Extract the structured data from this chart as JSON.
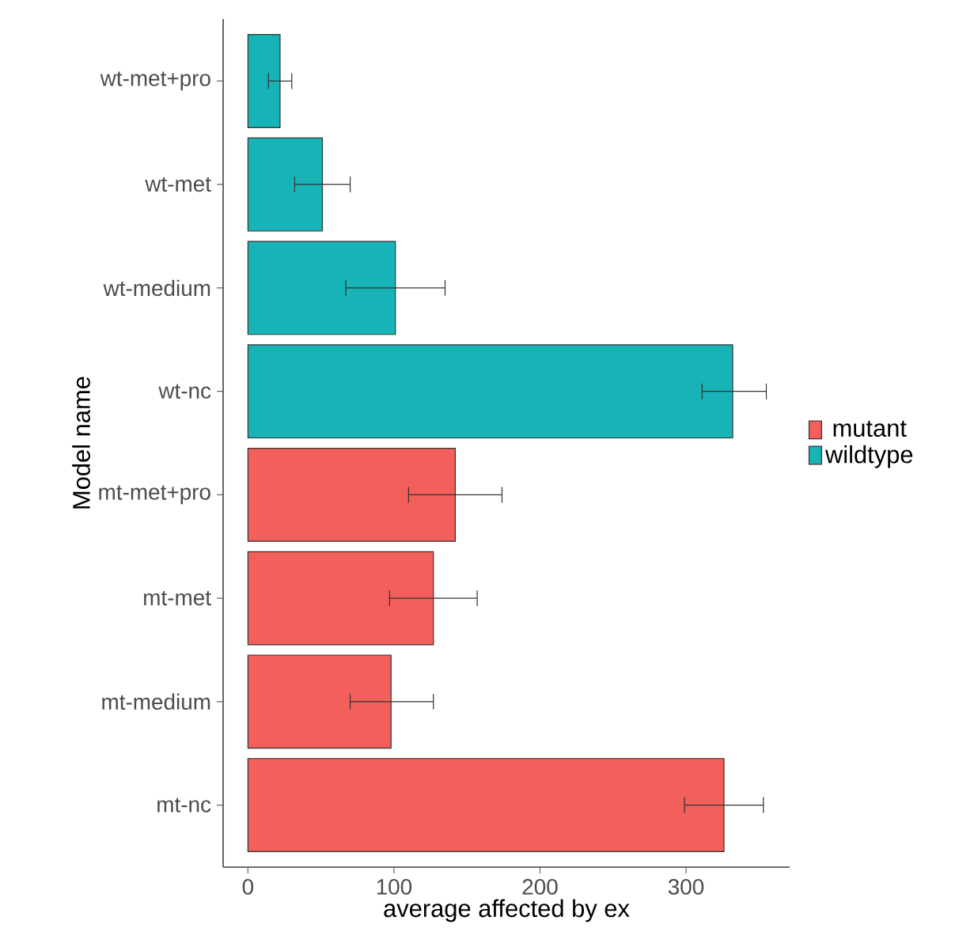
{
  "chart_data": {
    "type": "bar",
    "orientation": "horizontal",
    "xlabel": "average affected by ex",
    "ylabel": "Model name",
    "categories": [
      "wt-met+pro",
      "wt-met",
      "wt-medium",
      "wt-nc",
      "mt-met+pro",
      "mt-met",
      "mt-medium",
      "mt-nc"
    ],
    "series": [
      {
        "name": "mutant",
        "color": "#f35f5a",
        "values": [
          null,
          null,
          null,
          null,
          142,
          127,
          98,
          326
        ],
        "errors": [
          null,
          null,
          null,
          null,
          [
            110,
            174
          ],
          [
            97,
            157
          ],
          [
            70,
            127
          ],
          [
            299,
            353
          ]
        ]
      },
      {
        "name": "wildtype",
        "color": "#17b3b6",
        "values": [
          22,
          51,
          101,
          332,
          null,
          null,
          null,
          null
        ],
        "errors": [
          [
            14,
            30
          ],
          [
            32,
            70
          ],
          [
            67,
            135
          ],
          [
            311,
            355
          ],
          null,
          null,
          null,
          null
        ]
      }
    ],
    "xlim": [
      -17,
      371
    ],
    "xticks": [
      0,
      100,
      200,
      300
    ],
    "grid": false,
    "legend": "right"
  }
}
